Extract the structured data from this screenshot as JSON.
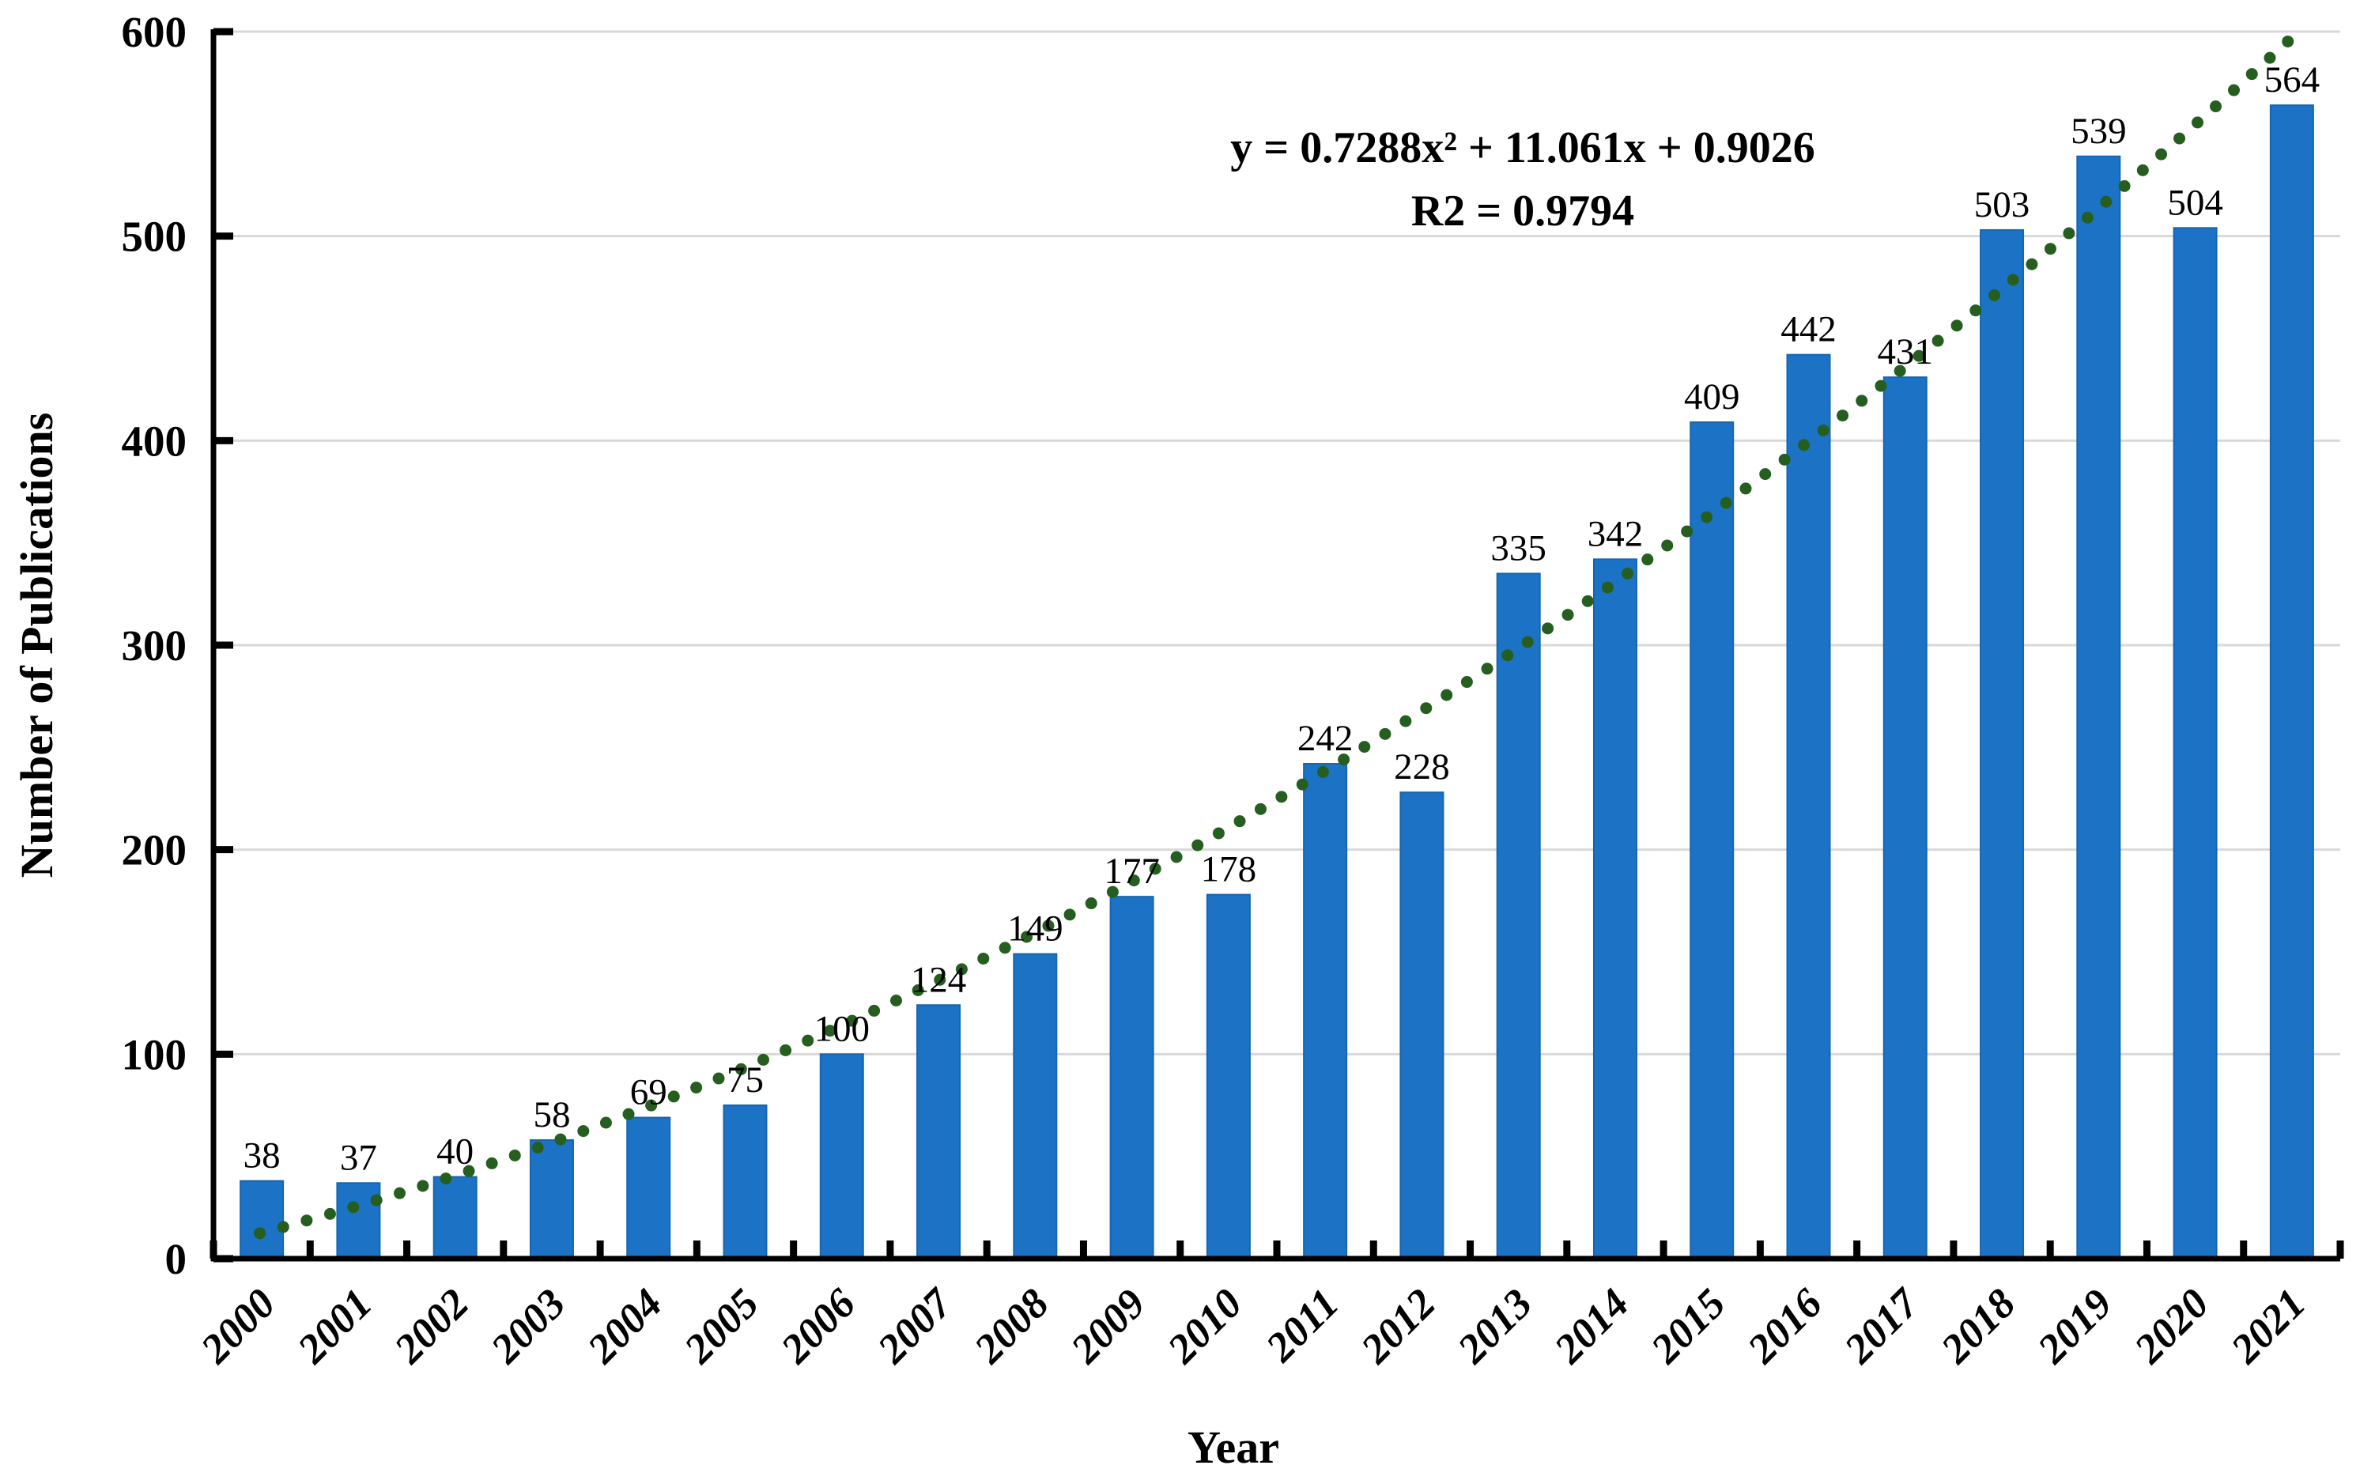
{
  "chart_data": {
    "type": "bar",
    "title": "",
    "xlabel": "Year",
    "ylabel": "Number of Publications",
    "categories": [
      "2000",
      "2001",
      "2002",
      "2003",
      "2004",
      "2005",
      "2006",
      "2007",
      "2008",
      "2009",
      "2010",
      "2011",
      "2012",
      "2013",
      "2014",
      "2015",
      "2016",
      "2017",
      "2018",
      "2019",
      "2020",
      "2021"
    ],
    "series": [
      {
        "name": "Number of Publications",
        "values": [
          38,
          37,
          40,
          58,
          69,
          75,
          100,
          124,
          149,
          177,
          178,
          242,
          228,
          335,
          342,
          409,
          442,
          431,
          503,
          539,
          504,
          564
        ]
      }
    ],
    "data_labels_shown": true,
    "ylim": [
      0,
      600
    ],
    "ytick_step": 100,
    "ytick_labels": [
      "0",
      "100",
      "200",
      "300",
      "400",
      "500",
      "600"
    ],
    "grid": true,
    "legend_position": "none",
    "trendline": {
      "style": "dotted",
      "equation_line1": "y = 0.7288x² + 11.061x + 0.9026",
      "equation_line2": "R2 = 0.9794",
      "coefficients": {
        "a": 0.7288,
        "b": 11.061,
        "c": 0.9026
      }
    },
    "colors": {
      "bar_fill": "#1C73C5",
      "bar_border": "#1565B2",
      "trendline_dot": "#265E20",
      "gridline": "#D9D9D9",
      "axis": "#000000",
      "text": "#000000",
      "background": "#FFFFFF"
    }
  }
}
